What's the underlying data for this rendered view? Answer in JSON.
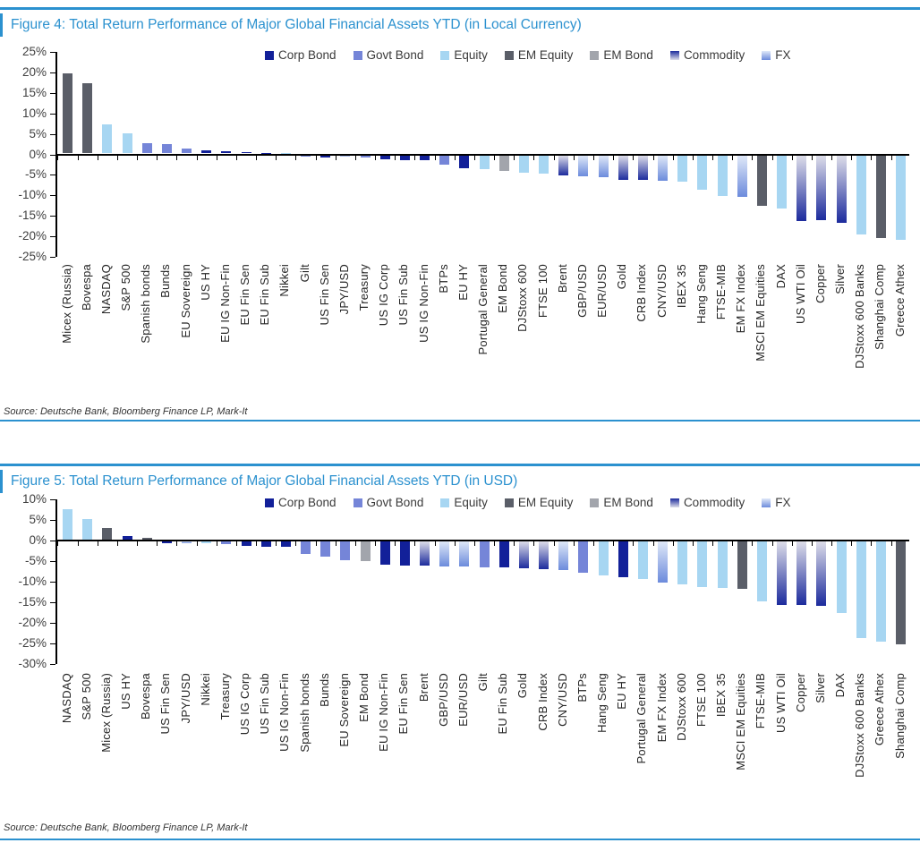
{
  "colors": {
    "accent_blue": "#2b91cf",
    "axis_black": "#000000",
    "tick_label_gray": "#404040",
    "x_label_dark": "#262626"
  },
  "groups": {
    "Corp Bond": {
      "color": "#122099"
    },
    "Govt Bond": {
      "color": "#7585d8"
    },
    "Equity": {
      "color": "#a7d6f2"
    },
    "EM Equity": {
      "color": "#5a5e68"
    },
    "EM Bond": {
      "color": "#a2a5ac"
    },
    "Commodity": {
      "gradient": [
        "#dddde9",
        "#1c2b9d"
      ]
    },
    "FX": {
      "gradient": [
        "#dfe8f8",
        "#6c8bdc"
      ]
    }
  },
  "chart_data": [
    {
      "type": "bar",
      "title": "Figure 4: Total Return Performance of Major Global Financial Assets YTD (in Local Currency)",
      "source": "Source: Deutsche Bank, Bloomberg Finance LP, Mark-It",
      "ylim": [
        -25,
        25
      ],
      "ytick_step": 5,
      "ytick_labels": [
        "25%",
        "20%",
        "15%",
        "10%",
        "5%",
        "0%",
        "-5%",
        "-10%",
        "-15%",
        "-20%",
        "-25%"
      ],
      "grid": false,
      "legend_position": "top",
      "legend": [
        "Corp Bond",
        "Govt Bond",
        "Equity",
        "EM Equity",
        "EM Bond",
        "Commodity",
        "FX"
      ],
      "bars": [
        {
          "label": "Micex (Russia)",
          "value": 19.6,
          "group": "EM Equity"
        },
        {
          "label": "Bovespa",
          "value": 17.2,
          "group": "EM Equity"
        },
        {
          "label": "NASDAQ",
          "value": 7.2,
          "group": "Equity"
        },
        {
          "label": "S&P 500",
          "value": 5.0,
          "group": "Equity"
        },
        {
          "label": "Spanish bonds",
          "value": 2.6,
          "group": "Govt Bond"
        },
        {
          "label": "Bunds",
          "value": 2.4,
          "group": "Govt Bond"
        },
        {
          "label": "EU Sovereign",
          "value": 1.2,
          "group": "Govt Bond"
        },
        {
          "label": "US HY",
          "value": 0.8,
          "group": "Corp Bond"
        },
        {
          "label": "EU IG Non-Fin",
          "value": 0.5,
          "group": "Corp Bond"
        },
        {
          "label": "EU Fin Sen",
          "value": 0.3,
          "group": "Corp Bond"
        },
        {
          "label": "EU Fin Sub",
          "value": 0.2,
          "group": "Corp Bond"
        },
        {
          "label": "Nikkei",
          "value": 0.1,
          "group": "Equity"
        },
        {
          "label": "Gilt",
          "value": -0.1,
          "group": "Govt Bond"
        },
        {
          "label": "US Fin Sen",
          "value": -0.6,
          "group": "Corp Bond"
        },
        {
          "label": "JPY/USD",
          "value": -0.4,
          "group": "FX"
        },
        {
          "label": "Treasury",
          "value": -0.6,
          "group": "Govt Bond"
        },
        {
          "label": "US IG Corp",
          "value": -1.0,
          "group": "Corp Bond"
        },
        {
          "label": "US Fin Sub",
          "value": -1.2,
          "group": "Corp Bond"
        },
        {
          "label": "US IG Non-Fin",
          "value": -1.3,
          "group": "Corp Bond"
        },
        {
          "label": "BTPs",
          "value": -2.4,
          "group": "Govt Bond"
        },
        {
          "label": "EU HY",
          "value": -3.2,
          "group": "Corp Bond"
        },
        {
          "label": "Portugal General",
          "value": -3.4,
          "group": "Equity"
        },
        {
          "label": "EM Bond",
          "value": -3.9,
          "group": "EM Bond"
        },
        {
          "label": "DJStoxx 600",
          "value": -4.3,
          "group": "Equity"
        },
        {
          "label": "FTSE 100",
          "value": -4.5,
          "group": "Equity"
        },
        {
          "label": "Brent",
          "value": -4.9,
          "group": "Commodity"
        },
        {
          "label": "GBP/USD",
          "value": -5.1,
          "group": "FX"
        },
        {
          "label": "EUR/USD",
          "value": -5.4,
          "group": "FX"
        },
        {
          "label": "Gold",
          "value": -6.0,
          "group": "Commodity"
        },
        {
          "label": "CRB Index",
          "value": -6.1,
          "group": "Commodity"
        },
        {
          "label": "CNY/USD",
          "value": -6.2,
          "group": "FX"
        },
        {
          "label": "IBEX 35",
          "value": -6.4,
          "group": "Equity"
        },
        {
          "label": "Hang Seng",
          "value": -8.3,
          "group": "Equity"
        },
        {
          "label": "FTSE-MIB",
          "value": -9.9,
          "group": "Equity"
        },
        {
          "label": "EM FX Index",
          "value": -10.1,
          "group": "FX"
        },
        {
          "label": "MSCI EM Equities",
          "value": -12.3,
          "group": "EM Equity"
        },
        {
          "label": "DAX",
          "value": -12.9,
          "group": "Equity"
        },
        {
          "label": "US WTI Oil",
          "value": -16.0,
          "group": "Commodity"
        },
        {
          "label": "Copper",
          "value": -15.9,
          "group": "Commodity"
        },
        {
          "label": "Silver",
          "value": -16.4,
          "group": "Commodity"
        },
        {
          "label": "DJStoxx 600 Banks",
          "value": -19.3,
          "group": "Equity"
        },
        {
          "label": "Shanghai Comp",
          "value": -20.2,
          "group": "EM Equity"
        },
        {
          "label": "Greece Athex",
          "value": -20.6,
          "group": "Equity"
        }
      ]
    },
    {
      "type": "bar",
      "title": "Figure 5: Total Return Performance of Major Global Financial Assets YTD (in USD)",
      "source": "Source: Deutsche Bank, Bloomberg Finance LP, Mark-It",
      "ylim": [
        -30,
        10
      ],
      "ytick_step": 5,
      "ytick_labels": [
        "10%",
        "5%",
        "0%",
        "-5%",
        "-10%",
        "-15%",
        "-20%",
        "-25%",
        "-30%"
      ],
      "grid": false,
      "legend_position": "top",
      "legend": [
        "Corp Bond",
        "Govt Bond",
        "Equity",
        "EM Equity",
        "EM Bond",
        "Commodity",
        "FX"
      ],
      "bars": [
        {
          "label": "NASDAQ",
          "value": 7.3,
          "group": "Equity"
        },
        {
          "label": "S&P 500",
          "value": 5.1,
          "group": "Equity"
        },
        {
          "label": "Micex (Russia)",
          "value": 2.8,
          "group": "EM Equity"
        },
        {
          "label": "US HY",
          "value": 0.8,
          "group": "Corp Bond"
        },
        {
          "label": "Bovespa",
          "value": 0.4,
          "group": "EM Equity"
        },
        {
          "label": "US Fin Sen",
          "value": -0.5,
          "group": "Corp Bond"
        },
        {
          "label": "JPY/USD",
          "value": -0.4,
          "group": "FX"
        },
        {
          "label": "Nikkei",
          "value": -0.5,
          "group": "Equity"
        },
        {
          "label": "Treasury",
          "value": -0.6,
          "group": "Govt Bond"
        },
        {
          "label": "US IG Corp",
          "value": -1.0,
          "group": "Corp Bond"
        },
        {
          "label": "US Fin Sub",
          "value": -1.2,
          "group": "Corp Bond"
        },
        {
          "label": "US IG Non-Fin",
          "value": -1.4,
          "group": "Corp Bond"
        },
        {
          "label": "Spanish bonds",
          "value": -3.0,
          "group": "Govt Bond"
        },
        {
          "label": "Bunds",
          "value": -3.7,
          "group": "Govt Bond"
        },
        {
          "label": "EU Sovereign",
          "value": -4.5,
          "group": "Govt Bond"
        },
        {
          "label": "EM Bond",
          "value": -4.7,
          "group": "EM Bond"
        },
        {
          "label": "EU IG Non-Fin",
          "value": -5.6,
          "group": "Corp Bond"
        },
        {
          "label": "EU Fin Sen",
          "value": -5.9,
          "group": "Corp Bond"
        },
        {
          "label": "Brent",
          "value": -5.9,
          "group": "Commodity"
        },
        {
          "label": "GBP/USD",
          "value": -6.1,
          "group": "FX"
        },
        {
          "label": "EUR/USD",
          "value": -6.0,
          "group": "FX"
        },
        {
          "label": "Gilt",
          "value": -6.2,
          "group": "Govt Bond"
        },
        {
          "label": "EU Fin Sub",
          "value": -6.4,
          "group": "Corp Bond"
        },
        {
          "label": "Gold",
          "value": -6.5,
          "group": "Commodity"
        },
        {
          "label": "CRB Index",
          "value": -6.8,
          "group": "Commodity"
        },
        {
          "label": "CNY/USD",
          "value": -6.9,
          "group": "FX"
        },
        {
          "label": "BTPs",
          "value": -7.5,
          "group": "Govt Bond"
        },
        {
          "label": "Hang Seng",
          "value": -8.3,
          "group": "Equity"
        },
        {
          "label": "EU HY",
          "value": -8.7,
          "group": "Corp Bond"
        },
        {
          "label": "Portugal General",
          "value": -9.2,
          "group": "Equity"
        },
        {
          "label": "EM FX Index",
          "value": -10.1,
          "group": "FX"
        },
        {
          "label": "DJStoxx 600",
          "value": -10.5,
          "group": "Equity"
        },
        {
          "label": "FTSE 100",
          "value": -11.0,
          "group": "Equity"
        },
        {
          "label": "IBEX 35",
          "value": -11.4,
          "group": "Equity"
        },
        {
          "label": "MSCI EM Equities",
          "value": -11.6,
          "group": "EM Equity"
        },
        {
          "label": "FTSE-MIB",
          "value": -14.5,
          "group": "Equity"
        },
        {
          "label": "US WTI Oil",
          "value": -15.4,
          "group": "Commodity"
        },
        {
          "label": "Copper",
          "value": -15.4,
          "group": "Commodity"
        },
        {
          "label": "Silver",
          "value": -15.6,
          "group": "Commodity"
        },
        {
          "label": "DAX",
          "value": -17.4,
          "group": "Equity"
        },
        {
          "label": "DJStoxx 600 Banks",
          "value": -23.4,
          "group": "Equity"
        },
        {
          "label": "Greece Athex",
          "value": -24.4,
          "group": "Equity"
        },
        {
          "label": "Shanghai Comp",
          "value": -24.9,
          "group": "EM Equity"
        }
      ]
    }
  ]
}
